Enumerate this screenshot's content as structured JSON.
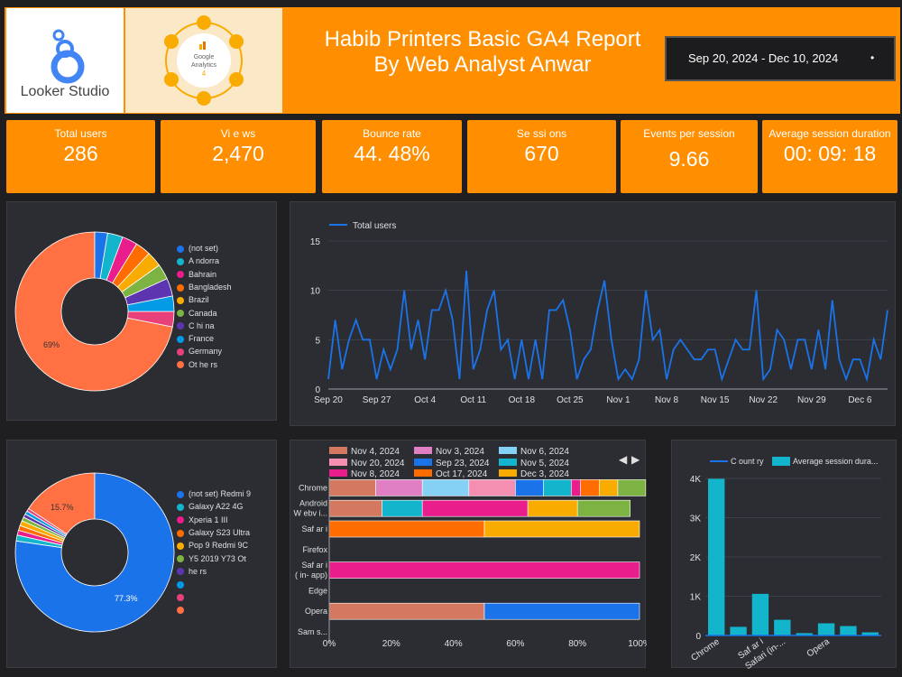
{
  "header": {
    "logo_label": "Looker Studio",
    "ga_logo_label": [
      "Google",
      "Analytics",
      "4"
    ],
    "title_line1": "Habib Printers Basic GA4 Report",
    "title_line2": "By Web Analyst Anwar",
    "date_range": "Sep 20, 2024 - Dec 10, 2024",
    "date_menu_glyph": "•"
  },
  "kpis": [
    {
      "label": "Total users",
      "value": "286"
    },
    {
      "label": "Vi e ws",
      "value": "2,470"
    },
    {
      "label": "Bounce rate",
      "value": "44. 48%"
    },
    {
      "label": "Se ssi ons",
      "value": "670"
    },
    {
      "label": "Events per session",
      "value": "9.66"
    },
    {
      "label": "Average session duration",
      "value": "00: 09: 18"
    }
  ],
  "colors": {
    "orange": "#ff8f00",
    "blue_line": "#1a73e8",
    "teal": "#12b5cb",
    "coral": "#ff7043",
    "pink": "#e91e8c"
  },
  "chart_data": [
    {
      "type": "pie",
      "subtype": "donut",
      "slice_label": "69%",
      "legend": [
        "(not set)",
        "A ndorra",
        "Bahrain",
        "Bangladesh",
        "Brazil",
        "Canada",
        "C hi na",
        "France",
        "Germany",
        "Ot he rs"
      ],
      "slices": [
        {
          "label": "(not set)",
          "value": 2.5,
          "color": "#1a73e8"
        },
        {
          "label": "A ndorra",
          "value": 3,
          "color": "#12b5cb"
        },
        {
          "label": "Bahrain",
          "value": 3,
          "color": "#e91e8c"
        },
        {
          "label": "Bangladesh",
          "value": 3,
          "color": "#ff6d00"
        },
        {
          "label": "Brazil",
          "value": 3,
          "color": "#f9ab00"
        },
        {
          "label": "Canada",
          "value": 3,
          "color": "#7cb342"
        },
        {
          "label": "C hi na",
          "value": 3.5,
          "color": "#5e35b1"
        },
        {
          "label": "France",
          "value": 3,
          "color": "#039be5"
        },
        {
          "label": "Germany",
          "value": 3,
          "color": "#e8417a"
        },
        {
          "label": "Ot he rs",
          "value": 69,
          "color": "#ff7043"
        }
      ]
    },
    {
      "type": "line",
      "series_name": "Total users",
      "ylim": [
        0,
        15
      ],
      "yticks": [
        0,
        5,
        10,
        15
      ],
      "xtick_labels": [
        "Sep 20",
        "Sep 27",
        "Oct 4",
        "Oct 11",
        "Oct 18",
        "Oct 25",
        "Nov 1",
        "Nov 8",
        "Nov 15",
        "Nov 22",
        "Nov 29",
        "Dec 6"
      ],
      "x_start": "Sep 20",
      "x_end": "Dec 10",
      "values": [
        1,
        7,
        2,
        5,
        7,
        5,
        5,
        1,
        4,
        2,
        4,
        10,
        4,
        7,
        3,
        8,
        8,
        10,
        7,
        1,
        12,
        2,
        4,
        8,
        10,
        4,
        5,
        1,
        5,
        1,
        5,
        1,
        8,
        8,
        9,
        6,
        1,
        3,
        4,
        8,
        11,
        5,
        1,
        2,
        1,
        3,
        10,
        5,
        6,
        1,
        4,
        5,
        4,
        3,
        3,
        4,
        4,
        1,
        3,
        5,
        4,
        4,
        10,
        1,
        2,
        6,
        5,
        2,
        5,
        5,
        2,
        6,
        2,
        9,
        3,
        1,
        3,
        3,
        1,
        5,
        3,
        8
      ]
    },
    {
      "type": "pie",
      "subtype": "donut",
      "slice_labels": [
        "77.3%",
        "15.7%"
      ],
      "legend": [
        "(not set) Redmi 9",
        "Galaxy A22 4G",
        "Xperia 1 III",
        "Galaxy S23 Ultra",
        "Pop 9 Redmi 9C",
        "Y5 2019 Y73 Ot",
        "he rs",
        "",
        "",
        ""
      ],
      "slices": [
        {
          "label": "(not set)",
          "value": 77.3,
          "color": "#1a73e8"
        },
        {
          "label": "Redmi 9",
          "value": 1.2,
          "color": "#12b5cb"
        },
        {
          "label": "Galaxy A22 4G",
          "value": 1.0,
          "color": "#e91e8c"
        },
        {
          "label": "Xperia 1 III",
          "value": 1.0,
          "color": "#ff6d00"
        },
        {
          "label": "Galaxy S23 Ultra",
          "value": 1.0,
          "color": "#f9ab00"
        },
        {
          "label": "Pop 9",
          "value": 0.8,
          "color": "#7cb342"
        },
        {
          "label": "Redmi 9C",
          "value": 0.7,
          "color": "#5e35b1"
        },
        {
          "label": "Y5 2019",
          "value": 0.7,
          "color": "#039be5"
        },
        {
          "label": "Y73",
          "value": 0.6,
          "color": "#e8417a"
        },
        {
          "label": "Others",
          "value": 15.7,
          "color": "#ff7043"
        }
      ]
    },
    {
      "type": "bar",
      "orientation": "horizontal",
      "stacked": "percent",
      "legend": [
        {
          "name": "Nov 4, 2024",
          "color": "#d4785f"
        },
        {
          "name": "Nov 3, 2024",
          "color": "#e07fc3"
        },
        {
          "name": "Nov 6, 2024",
          "color": "#85d0f5"
        },
        {
          "name": "Nov 20, 2024",
          "color": "#f48fb1"
        },
        {
          "name": "Sep 23, 2024",
          "color": "#1a73e8"
        },
        {
          "name": "Nov 5, 2024",
          "color": "#12b5cb"
        },
        {
          "name": "Nov 8, 2024",
          "color": "#e91e8c"
        },
        {
          "name": "Oct 17, 2024",
          "color": "#ff6d00"
        },
        {
          "name": "Dec 3, 2024",
          "color": "#f9ab00"
        }
      ],
      "categories": [
        {
          "label": [
            "Chrome"
          ],
          "segments": [
            {
              "v": 15,
              "c": "#d4785f"
            },
            {
              "v": 15,
              "c": "#e07fc3"
            },
            {
              "v": 15,
              "c": "#85d0f5"
            },
            {
              "v": 15,
              "c": "#f48fb1"
            },
            {
              "v": 9,
              "c": "#1a73e8"
            },
            {
              "v": 9,
              "c": "#12b5cb"
            },
            {
              "v": 3,
              "c": "#e91e8c"
            },
            {
              "v": 6,
              "c": "#ff6d00"
            },
            {
              "v": 6,
              "c": "#f9ab00"
            },
            {
              "v": 9,
              "c": "#7cb342"
            }
          ]
        },
        {
          "label": [
            "Android",
            "W ebv i..."
          ],
          "segments": [
            {
              "v": 17,
              "c": "#d4785f"
            },
            {
              "v": 13,
              "c": "#12b5cb"
            },
            {
              "v": 34,
              "c": "#e91e8c"
            },
            {
              "v": 16,
              "c": "#f9ab00"
            },
            {
              "v": 17,
              "c": "#7cb342"
            }
          ]
        },
        {
          "label": [
            "Saf ar i"
          ],
          "segments": [
            {
              "v": 50,
              "c": "#ff6d00"
            },
            {
              "v": 50,
              "c": "#f9ab00"
            }
          ]
        },
        {
          "label": [
            "Firefox"
          ],
          "segments": []
        },
        {
          "label": [
            "Saf ar i",
            "( in- app)"
          ],
          "segments": [
            {
              "v": 100,
              "c": "#e91e8c"
            }
          ]
        },
        {
          "label": [
            "Edge"
          ],
          "segments": []
        },
        {
          "label": [
            "Opera"
          ],
          "segments": [
            {
              "v": 50,
              "c": "#d4785f"
            },
            {
              "v": 50,
              "c": "#1a73e8"
            }
          ]
        },
        {
          "label": [
            "Sam s..."
          ],
          "segments": []
        }
      ],
      "xtick_labels": [
        "0%",
        "20%",
        "40%",
        "60%",
        "80%",
        "100%"
      ],
      "pager_glyphs": [
        "◀",
        "▶"
      ]
    },
    {
      "type": "bar",
      "legend": [
        {
          "name": "C ount ry",
          "color": "#1a73e8",
          "marker": "line"
        },
        {
          "name": "Average session dura...",
          "color": "#12b5cb",
          "marker": "box"
        }
      ],
      "ylim": [
        0,
        4000
      ],
      "ytick_labels": [
        "0",
        "1K",
        "2K",
        "3K",
        "4K"
      ],
      "ytick_values": [
        0,
        1000,
        2000,
        3000,
        4000
      ],
      "values": [
        3990,
        220,
        1060,
        400,
        60,
        310,
        240,
        80
      ],
      "xtick_labels": [
        "Chrome",
        "Saf ar i",
        "Safari (in-...",
        "Opera"
      ],
      "xtick_index": [
        0,
        2,
        3,
        5
      ]
    }
  ]
}
